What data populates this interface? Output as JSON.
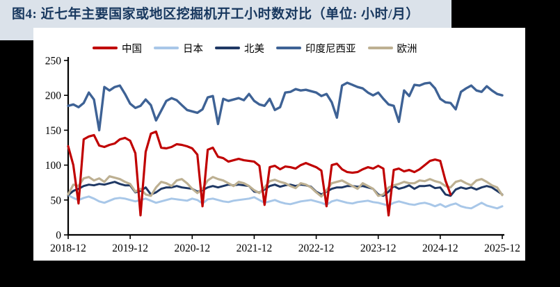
{
  "figure": {
    "title": "图4: 近七年主要国家或地区挖掘机开工小时数对比（单位: 小时/月）"
  },
  "colors": {
    "page_background": "#000000",
    "title_band_background": "#dbe2ea",
    "title_text": "#17375e",
    "chart_background": "#ffffff",
    "axis": "#000000",
    "china_red": "#c00000",
    "japan_light_blue": "#a8c7e8",
    "north_america_navy": "#1f3864",
    "indonesia_steel_blue": "#3e6295",
    "europe_tan": "#bdb092"
  },
  "chart_data": {
    "type": "line",
    "title": "近七年主要国家或地区挖掘机开工小时数对比",
    "unit": "小时/月",
    "x_start": "2018-12",
    "x_end": "2025-12",
    "x_monthly": true,
    "months_per_tick": 12,
    "x_tick_labels": [
      "2018-12",
      "2019-12",
      "2020-12",
      "2021-12",
      "2022-12",
      "2023-12",
      "2024-12",
      "2025-12"
    ],
    "y_tick_labels": [
      "0",
      "50",
      "100",
      "150",
      "200",
      "250"
    ],
    "ylim": [
      0,
      250
    ],
    "grid": false,
    "legend_position": "top",
    "series": [
      {
        "id": "china",
        "name": "中国",
        "color": "#c00000",
        "start_month": 0,
        "values": [
          127,
          100,
          45,
          137,
          141,
          143,
          128,
          126,
          129,
          131,
          137,
          139,
          135,
          117,
          28,
          119,
          145,
          148,
          125,
          124,
          126,
          130,
          129,
          127,
          124,
          115,
          41,
          122,
          125,
          112,
          110,
          105,
          107,
          109,
          107,
          106,
          105,
          99,
          43,
          97,
          99,
          94,
          98,
          97,
          95,
          100,
          103,
          100,
          97,
          92,
          41,
          100,
          102,
          94,
          90,
          89,
          90,
          94,
          97,
          95,
          99,
          95,
          28,
          93,
          95,
          91,
          93,
          90,
          94,
          100,
          106,
          108,
          106,
          78,
          58
        ]
      },
      {
        "id": "japan",
        "name": "日本",
        "color": "#a8c7e8",
        "start_month": 0,
        "values": [
          57,
          53,
          50,
          53,
          55,
          52,
          48,
          46,
          49,
          52,
          53,
          52,
          50,
          48,
          50,
          52,
          49,
          46,
          48,
          50,
          52,
          51,
          50,
          49,
          52,
          50,
          45,
          51,
          52,
          50,
          48,
          47,
          49,
          50,
          51,
          52,
          54,
          50,
          46,
          48,
          50,
          47,
          45,
          44,
          46,
          48,
          49,
          50,
          48,
          46,
          43,
          48,
          50,
          48,
          46,
          45,
          47,
          48,
          49,
          47,
          46,
          44,
          42,
          46,
          48,
          46,
          44,
          43,
          45,
          46,
          44,
          41,
          44,
          40,
          43,
          45,
          41,
          39,
          38,
          42,
          46,
          42,
          40,
          38,
          41
        ]
      },
      {
        "id": "north-america",
        "name": "北美",
        "color": "#1f3864",
        "start_month": 0,
        "values": [
          57,
          63,
          66,
          70,
          72,
          71,
          73,
          72,
          74,
          76,
          73,
          71,
          71,
          61,
          63,
          68,
          58,
          61,
          66,
          68,
          68,
          70,
          68,
          67,
          66,
          62,
          64,
          68,
          70,
          68,
          70,
          72,
          71,
          72,
          71,
          70,
          62,
          61,
          65,
          70,
          72,
          69,
          71,
          72,
          70,
          72,
          71,
          69,
          62,
          58,
          62,
          66,
          68,
          68,
          70,
          70,
          69,
          70,
          68,
          66,
          58,
          56,
          62,
          70,
          66,
          68,
          71,
          66,
          70,
          70,
          71,
          67,
          68,
          58,
          56,
          65,
          68,
          66,
          68,
          65,
          68,
          70,
          68,
          63,
          58
        ]
      },
      {
        "id": "indonesia",
        "name": "印度尼西亚",
        "color": "#3e6295",
        "start_month": 0,
        "values": [
          185,
          187,
          183,
          189,
          204,
          194,
          150,
          212,
          207,
          212,
          214,
          202,
          188,
          182,
          185,
          194,
          186,
          164,
          178,
          192,
          196,
          193,
          186,
          179,
          177,
          175,
          180,
          197,
          199,
          159,
          195,
          192,
          194,
          196,
          193,
          202,
          192,
          187,
          185,
          195,
          179,
          183,
          204,
          205,
          209,
          207,
          208,
          206,
          204,
          199,
          202,
          190,
          168,
          214,
          218,
          215,
          212,
          210,
          204,
          200,
          204,
          195,
          187,
          185,
          162,
          207,
          199,
          215,
          214,
          217,
          218,
          210,
          195,
          190,
          189,
          180,
          205,
          210,
          214,
          207,
          205,
          213,
          207,
          202,
          200
        ]
      },
      {
        "id": "europe",
        "name": "欧洲",
        "color": "#bdb092",
        "start_month": 0,
        "values": [
          58,
          72,
          70,
          81,
          83,
          78,
          81,
          76,
          84,
          82,
          80,
          76,
          73,
          62,
          66,
          58,
          56,
          68,
          76,
          74,
          70,
          78,
          80,
          74,
          66,
          60,
          66,
          78,
          83,
          80,
          78,
          74,
          70,
          76,
          74,
          70,
          64,
          60,
          68,
          77,
          79,
          76,
          74,
          70,
          67,
          74,
          72,
          68,
          61,
          55,
          64,
          74,
          76,
          78,
          74,
          70,
          66,
          74,
          70,
          66,
          56,
          58,
          68,
          71,
          73,
          76,
          74,
          74,
          78,
          77,
          80,
          77,
          75,
          70,
          68,
          76,
          78,
          74,
          71,
          78,
          80,
          76,
          71,
          68,
          57
        ]
      }
    ]
  }
}
